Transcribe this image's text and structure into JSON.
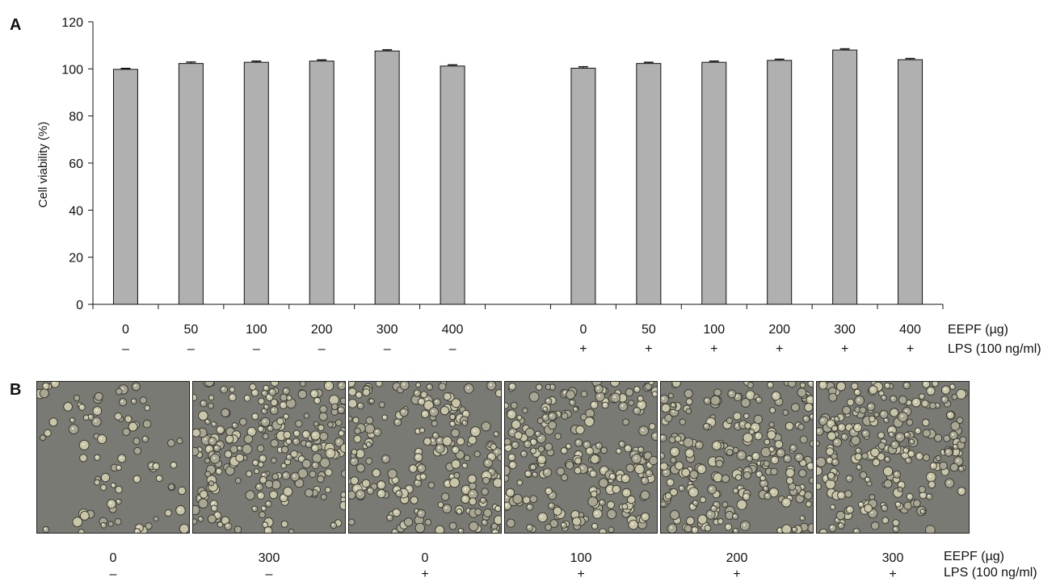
{
  "panels": {
    "a_label": "A",
    "b_label": "B"
  },
  "chart_data": {
    "type": "bar",
    "ylabel": "Cell viability (%)",
    "ylim": [
      0,
      120
    ],
    "yticks": [
      "0",
      "20",
      "40",
      "60",
      "80",
      "100",
      "120"
    ],
    "bar_color": "#b0b0b0",
    "row_labels": {
      "eepf": "EEPF (µg)",
      "lps": "LPS (100 ng/ml)"
    },
    "groups": [
      {
        "lps_sign": "–",
        "categories": [
          "0",
          "50",
          "100",
          "200",
          "300",
          "400"
        ],
        "values": [
          99.8,
          102.3,
          102.8,
          103.3,
          107.6,
          101.2
        ],
        "errors": [
          0.4,
          0.6,
          0.5,
          0.5,
          0.5,
          0.5
        ]
      },
      {
        "lps_sign": "+",
        "categories": [
          "0",
          "50",
          "100",
          "200",
          "300",
          "400"
        ],
        "values": [
          100.3,
          102.3,
          102.8,
          103.6,
          108.0,
          103.9
        ],
        "errors": [
          0.6,
          0.5,
          0.5,
          0.5,
          0.5,
          0.5
        ]
      }
    ]
  },
  "micrographs": {
    "eepf_values": [
      "0",
      "300",
      "0",
      "100",
      "200",
      "300"
    ],
    "lps_values": [
      "–",
      "–",
      "+",
      "+",
      "+",
      "+"
    ],
    "row_labels": {
      "eepf": "EEPF (µg)",
      "lps": "LPS (100 ng/ml)"
    }
  }
}
